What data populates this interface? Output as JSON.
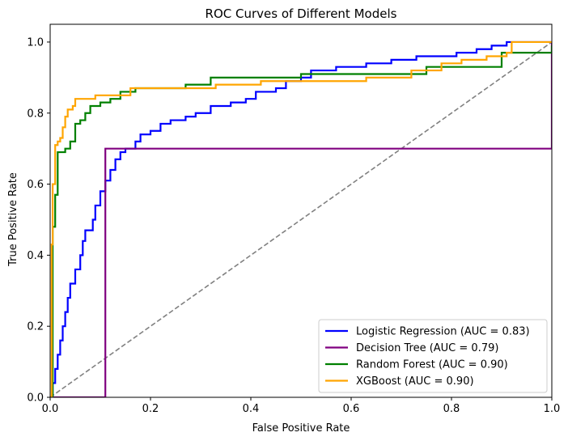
{
  "chart_data": {
    "type": "line",
    "title": "ROC Curves of Different Models",
    "xlabel": "False Positive Rate",
    "ylabel": "True Positive Rate",
    "xlim": [
      0.0,
      1.0
    ],
    "ylim": [
      0.0,
      1.05
    ],
    "xticks": [
      "0.0",
      "0.2",
      "0.4",
      "0.6",
      "0.8",
      "1.0"
    ],
    "yticks": [
      "0.0",
      "0.2",
      "0.4",
      "0.6",
      "0.8",
      "1.0"
    ],
    "grid": false,
    "legend_position": "lower-right",
    "series": [
      {
        "name": "Logistic Regression (AUC = 0.83)",
        "color": "#0000ff",
        "points": [
          [
            0,
            0
          ],
          [
            0.005,
            0.04
          ],
          [
            0.01,
            0.08
          ],
          [
            0.015,
            0.12
          ],
          [
            0.02,
            0.16
          ],
          [
            0.025,
            0.2
          ],
          [
            0.03,
            0.24
          ],
          [
            0.035,
            0.28
          ],
          [
            0.04,
            0.32
          ],
          [
            0.05,
            0.36
          ],
          [
            0.06,
            0.4
          ],
          [
            0.065,
            0.44
          ],
          [
            0.07,
            0.47
          ],
          [
            0.085,
            0.5
          ],
          [
            0.09,
            0.54
          ],
          [
            0.1,
            0.58
          ],
          [
            0.11,
            0.61
          ],
          [
            0.12,
            0.64
          ],
          [
            0.13,
            0.67
          ],
          [
            0.14,
            0.69
          ],
          [
            0.15,
            0.7
          ],
          [
            0.17,
            0.72
          ],
          [
            0.18,
            0.74
          ],
          [
            0.2,
            0.75
          ],
          [
            0.22,
            0.77
          ],
          [
            0.24,
            0.78
          ],
          [
            0.27,
            0.79
          ],
          [
            0.29,
            0.8
          ],
          [
            0.32,
            0.82
          ],
          [
            0.36,
            0.83
          ],
          [
            0.39,
            0.84
          ],
          [
            0.41,
            0.86
          ],
          [
            0.45,
            0.87
          ],
          [
            0.47,
            0.89
          ],
          [
            0.5,
            0.9
          ],
          [
            0.52,
            0.92
          ],
          [
            0.57,
            0.93
          ],
          [
            0.63,
            0.94
          ],
          [
            0.68,
            0.95
          ],
          [
            0.73,
            0.96
          ],
          [
            0.81,
            0.97
          ],
          [
            0.85,
            0.98
          ],
          [
            0.88,
            0.99
          ],
          [
            0.91,
            1.0
          ],
          [
            1.0,
            1.0
          ]
        ]
      },
      {
        "name": "Decision Tree (AUC = 0.79)",
        "color": "#800080",
        "points": [
          [
            0,
            0
          ],
          [
            0.11,
            0.7
          ],
          [
            1.0,
            1.0
          ]
        ]
      },
      {
        "name": "Random Forest (AUC = 0.90)",
        "color": "#008000",
        "points": [
          [
            0,
            0
          ],
          [
            0.005,
            0.48
          ],
          [
            0.01,
            0.57
          ],
          [
            0.015,
            0.69
          ],
          [
            0.03,
            0.7
          ],
          [
            0.04,
            0.72
          ],
          [
            0.05,
            0.77
          ],
          [
            0.06,
            0.78
          ],
          [
            0.07,
            0.8
          ],
          [
            0.08,
            0.82
          ],
          [
            0.1,
            0.83
          ],
          [
            0.12,
            0.84
          ],
          [
            0.14,
            0.86
          ],
          [
            0.17,
            0.87
          ],
          [
            0.27,
            0.88
          ],
          [
            0.32,
            0.9
          ],
          [
            0.45,
            0.9
          ],
          [
            0.5,
            0.91
          ],
          [
            0.75,
            0.93
          ],
          [
            0.9,
            0.97
          ],
          [
            1.0,
            0.99
          ]
        ]
      },
      {
        "name": "XGBoost (AUC = 0.90)",
        "color": "#ffa500",
        "points": [
          [
            0,
            0
          ],
          [
            0.003,
            0.43
          ],
          [
            0.005,
            0.6
          ],
          [
            0.01,
            0.71
          ],
          [
            0.015,
            0.72
          ],
          [
            0.02,
            0.73
          ],
          [
            0.025,
            0.76
          ],
          [
            0.03,
            0.79
          ],
          [
            0.035,
            0.81
          ],
          [
            0.045,
            0.82
          ],
          [
            0.05,
            0.84
          ],
          [
            0.09,
            0.85
          ],
          [
            0.16,
            0.87
          ],
          [
            0.31,
            0.87
          ],
          [
            0.33,
            0.88
          ],
          [
            0.42,
            0.89
          ],
          [
            0.63,
            0.9
          ],
          [
            0.72,
            0.92
          ],
          [
            0.78,
            0.94
          ],
          [
            0.82,
            0.95
          ],
          [
            0.87,
            0.96
          ],
          [
            0.91,
            0.97
          ],
          [
            0.92,
            1.0
          ],
          [
            1.0,
            1.0
          ]
        ]
      }
    ],
    "reference_line": {
      "color": "#808080",
      "style": "dashed",
      "points": [
        [
          0,
          0
        ],
        [
          1,
          1
        ]
      ]
    }
  }
}
